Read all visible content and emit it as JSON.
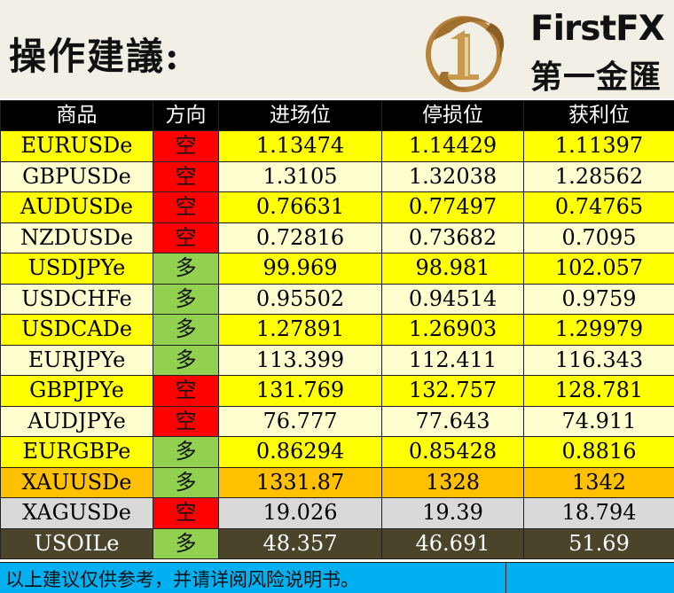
{
  "header": {
    "title": "操作建議:",
    "brand_en": "FirstFX",
    "brand_cn": "第一金匯"
  },
  "table": {
    "columns": [
      "商品",
      "方向",
      "进场位",
      "停损位",
      "获利位"
    ],
    "rows": [
      {
        "symbol": "EURUSDe",
        "direction": "空",
        "entry": "1.13474",
        "stop": "1.14429",
        "target": "1.11397"
      },
      {
        "symbol": "GBPUSDe",
        "direction": "空",
        "entry": "1.3105",
        "stop": "1.32038",
        "target": "1.28562"
      },
      {
        "symbol": "AUDUSDe",
        "direction": "空",
        "entry": "0.76631",
        "stop": "0.77497",
        "target": "0.74765"
      },
      {
        "symbol": "NZDUSDe",
        "direction": "空",
        "entry": "0.72816",
        "stop": "0.73682",
        "target": "0.7095"
      },
      {
        "symbol": "USDJPYe",
        "direction": "多",
        "entry": "99.969",
        "stop": "98.981",
        "target": "102.057"
      },
      {
        "symbol": "USDCHFe",
        "direction": "多",
        "entry": "0.95502",
        "stop": "0.94514",
        "target": "0.9759"
      },
      {
        "symbol": "USDCADe",
        "direction": "多",
        "entry": "1.27891",
        "stop": "1.26903",
        "target": "1.29979"
      },
      {
        "symbol": "EURJPYe",
        "direction": "多",
        "entry": "113.399",
        "stop": "112.411",
        "target": "116.343"
      },
      {
        "symbol": "GBPJPYe",
        "direction": "空",
        "entry": "131.769",
        "stop": "132.757",
        "target": "128.781"
      },
      {
        "symbol": "AUDJPYe",
        "direction": "空",
        "entry": "76.777",
        "stop": "77.643",
        "target": "74.911"
      },
      {
        "symbol": "EURGBPe",
        "direction": "多",
        "entry": "0.86294",
        "stop": "0.85428",
        "target": "0.8816"
      },
      {
        "symbol": "XAUUSDe",
        "direction": "多",
        "entry": "1331.87",
        "stop": "1328",
        "target": "1342"
      },
      {
        "symbol": "XAGUSDe",
        "direction": "空",
        "entry": "19.026",
        "stop": "19.39",
        "target": "18.794"
      },
      {
        "symbol": "USOILe",
        "direction": "多",
        "entry": "48.357",
        "stop": "46.691",
        "target": "51.69"
      }
    ]
  },
  "footer": {
    "disclaimer": "以上建议仅供参考，并请详阅风险说明书。"
  },
  "colors": {
    "short": "#ff0000",
    "long": "#92d050",
    "row_yellow": "#ffff00",
    "row_cream": "#ffffd0",
    "row_gold": "#ffc000",
    "row_silver": "#d9d9d9",
    "row_oil": "#4a452a",
    "footer": "#00b0f0"
  }
}
